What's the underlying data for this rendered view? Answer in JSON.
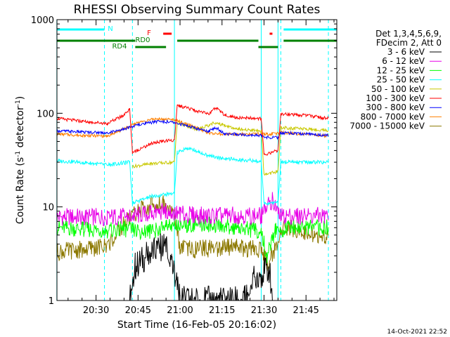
{
  "chart_data": {
    "type": "line",
    "title": "RHESSI Observing Summary Count Rates",
    "xlabel": "Start Time (16-Feb-05 20:16:02)",
    "ylabel_main": "Count Rate (s",
    "ylabel_sup1": "-1",
    "ylabel_mid": " detector",
    "ylabel_sup2": "-1",
    "ylabel_end": ")",
    "yscale": "log",
    "xlim": [
      "20:16:02",
      "21:56:00"
    ],
    "ylim": [
      1,
      1000
    ],
    "x_ticks": [
      "20:30",
      "20:45",
      "21:00",
      "21:15",
      "21:30",
      "21:45"
    ],
    "y_ticks": [
      "1",
      "10",
      "100",
      "1000"
    ],
    "legend_title_1": "Det 1,3,4,5,6,9,",
    "legend_title_2": "FDecim 2, Att 0",
    "legend_position": "right",
    "series": [
      {
        "name": "3 - 6 keV",
        "color": "#000000",
        "points": [
          [
            "20:42",
            1.0
          ],
          [
            "20:44",
            2.3
          ],
          [
            "20:48",
            3.0
          ],
          [
            "20:52",
            3.5
          ],
          [
            "20:55",
            4.0
          ],
          [
            "20:57",
            2.5
          ],
          [
            "21:00",
            1.0
          ],
          [
            "21:23",
            1.0
          ],
          [
            "21:27",
            1.8
          ],
          [
            "21:32",
            2.2
          ],
          [
            "21:33",
            1.0
          ]
        ]
      },
      {
        "name": "6 - 12 keV",
        "color": "#e800e8",
        "points": [
          [
            "20:16",
            7.8
          ],
          [
            "20:25",
            7.8
          ],
          [
            "20:34",
            7.8
          ],
          [
            "20:42",
            7.9
          ],
          [
            "20:50",
            8.5
          ],
          [
            "20:55",
            9.0
          ],
          [
            "21:00",
            8.3
          ],
          [
            "21:10",
            8.0
          ],
          [
            "21:20",
            8.1
          ],
          [
            "21:29",
            8.0
          ],
          [
            "21:33",
            12.0
          ],
          [
            "21:35",
            8.0
          ],
          [
            "21:45",
            8.0
          ],
          [
            "21:53",
            8.0
          ]
        ]
      },
      {
        "name": "12 - 25 keV",
        "color": "#00ff00",
        "points": [
          [
            "20:16",
            6.0
          ],
          [
            "20:25",
            5.8
          ],
          [
            "20:34",
            5.6
          ],
          [
            "20:40",
            5.8
          ],
          [
            "20:45",
            5.5
          ],
          [
            "20:50",
            5.5
          ],
          [
            "20:55",
            6.0
          ],
          [
            "21:00",
            6.5
          ],
          [
            "21:10",
            6.5
          ],
          [
            "21:20",
            6.0
          ],
          [
            "21:29",
            5.5
          ],
          [
            "21:31",
            3.0
          ],
          [
            "21:34",
            5.5
          ],
          [
            "21:40",
            6.0
          ],
          [
            "21:53",
            6.0
          ]
        ]
      },
      {
        "name": "25 - 50 keV",
        "color": "#00ffff",
        "points": [
          [
            "20:16",
            31
          ],
          [
            "20:25",
            30
          ],
          [
            "20:34",
            28
          ],
          [
            "20:42",
            30
          ],
          [
            "20:43",
            11
          ],
          [
            "20:50",
            13
          ],
          [
            "20:58",
            14
          ],
          [
            "20:59",
            38
          ],
          [
            "21:02",
            42
          ],
          [
            "21:05",
            41
          ],
          [
            "21:10",
            35
          ],
          [
            "21:15",
            33
          ],
          [
            "21:20",
            32
          ],
          [
            "21:29",
            31
          ],
          [
            "21:30",
            11
          ],
          [
            "21:35",
            11
          ],
          [
            "21:36",
            30
          ],
          [
            "21:45",
            30
          ],
          [
            "21:53",
            30
          ]
        ]
      },
      {
        "name": "50 - 100 keV",
        "color": "#c8c800",
        "points": [
          [
            "20:43",
            27
          ],
          [
            "20:50",
            29
          ],
          [
            "20:58",
            30
          ],
          [
            "20:59",
            80
          ],
          [
            "21:03",
            72
          ],
          [
            "21:06",
            68
          ],
          [
            "21:09",
            72
          ],
          [
            "21:12",
            78
          ],
          [
            "21:15",
            76
          ],
          [
            "21:20",
            68
          ],
          [
            "21:29",
            65
          ],
          [
            "21:30",
            22
          ],
          [
            "21:35",
            24
          ],
          [
            "21:36",
            70
          ],
          [
            "21:45",
            68
          ],
          [
            "21:53",
            66
          ]
        ]
      },
      {
        "name": "100 - 300 keV",
        "color": "#ff0000",
        "points": [
          [
            "20:16",
            88
          ],
          [
            "20:25",
            82
          ],
          [
            "20:34",
            78
          ],
          [
            "20:40",
            95
          ],
          [
            "20:42",
            110
          ],
          [
            "20:43",
            38
          ],
          [
            "20:50",
            48
          ],
          [
            "20:58",
            52
          ],
          [
            "20:59",
            122
          ],
          [
            "21:05",
            108
          ],
          [
            "21:10",
            98
          ],
          [
            "21:13",
            115
          ],
          [
            "21:16",
            95
          ],
          [
            "21:20",
            90
          ],
          [
            "21:29",
            88
          ],
          [
            "21:30",
            36
          ],
          [
            "21:35",
            40
          ],
          [
            "21:36",
            98
          ],
          [
            "21:45",
            95
          ],
          [
            "21:53",
            88
          ]
        ]
      },
      {
        "name": "300 - 800 keV",
        "color": "#0000ff",
        "points": [
          [
            "20:16",
            65
          ],
          [
            "20:25",
            63
          ],
          [
            "20:34",
            62
          ],
          [
            "20:40",
            68
          ],
          [
            "20:45",
            75
          ],
          [
            "20:52",
            82
          ],
          [
            "20:58",
            80
          ],
          [
            "21:05",
            70
          ],
          [
            "21:10",
            64
          ],
          [
            "21:13",
            70
          ],
          [
            "21:16",
            60
          ],
          [
            "21:20",
            60
          ],
          [
            "21:29",
            58
          ],
          [
            "21:30",
            55
          ],
          [
            "21:35",
            55
          ],
          [
            "21:36",
            62
          ],
          [
            "21:45",
            60
          ],
          [
            "21:53",
            58
          ]
        ]
      },
      {
        "name": "800 - 7000 keV",
        "color": "#ff8000",
        "points": [
          [
            "20:16",
            60
          ],
          [
            "20:25",
            58
          ],
          [
            "20:34",
            57
          ],
          [
            "20:40",
            68
          ],
          [
            "20:45",
            80
          ],
          [
            "20:52",
            88
          ],
          [
            "20:58",
            85
          ],
          [
            "21:05",
            72
          ],
          [
            "21:10",
            62
          ],
          [
            "21:15",
            60
          ],
          [
            "21:20",
            60
          ],
          [
            "21:29",
            60
          ],
          [
            "21:33",
            60
          ],
          [
            "21:36",
            62
          ],
          [
            "21:45",
            60
          ],
          [
            "21:53",
            57
          ]
        ]
      },
      {
        "name": "7000 - 15000 keV",
        "color": "#8c7800",
        "points": [
          [
            "20:16",
            3.3
          ],
          [
            "20:25",
            3.5
          ],
          [
            "20:34",
            3.8
          ],
          [
            "20:40",
            6.5
          ],
          [
            "20:45",
            9.0
          ],
          [
            "20:50",
            10.5
          ],
          [
            "20:54",
            11.0
          ],
          [
            "20:58",
            9.0
          ],
          [
            "21:00",
            3.5
          ],
          [
            "21:10",
            3.6
          ],
          [
            "21:20",
            3.7
          ],
          [
            "21:29",
            3.5
          ],
          [
            "21:31",
            2.5
          ],
          [
            "21:34",
            3.5
          ],
          [
            "21:36",
            6.0
          ],
          [
            "21:45",
            5.5
          ],
          [
            "21:53",
            4.5
          ]
        ]
      }
    ],
    "flag_bars": [
      {
        "label": "N",
        "color": "#00ffff",
        "segments": [
          [
            "20:16",
            "20:33"
          ],
          [
            "21:37",
            "21:56"
          ]
        ]
      },
      {
        "label": "F",
        "color": "#ff0000",
        "segments": [
          [
            "20:54",
            "20:57"
          ],
          [
            "21:32",
            "21:33"
          ]
        ]
      },
      {
        "label": "RD0",
        "color": "#008000",
        "segments": [
          [
            "20:16",
            "20:44"
          ],
          [
            "20:59",
            "21:28"
          ],
          [
            "21:37",
            "21:56"
          ]
        ]
      },
      {
        "label": "RD4",
        "color": "#008000",
        "segments": [
          [
            "20:44",
            "20:55"
          ],
          [
            "21:28",
            "21:35"
          ]
        ]
      }
    ],
    "vertical_lines": {
      "dashed": [
        "20:33",
        "20:43",
        "21:36",
        "21:53"
      ],
      "solid": [
        "20:16",
        "20:58",
        "21:29",
        "21:35"
      ],
      "color": "#00ffff"
    }
  },
  "footer": {
    "timestamp": "14-Oct-2021 22:52"
  }
}
